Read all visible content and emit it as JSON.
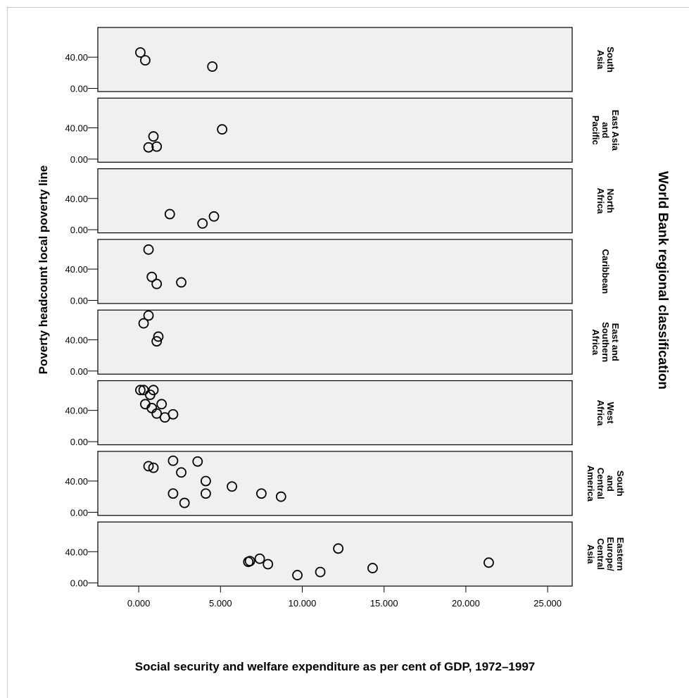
{
  "chart_data": {
    "type": "scatter",
    "xlabel": "Social security and welfare expenditure as per cent of GDP, 1972–1997",
    "ylabel": "Poverty headcount local poverty line",
    "facet_title": "World Bank regional classification",
    "xlim": [
      -2.5,
      26.5
    ],
    "ylim": [
      -4,
      78
    ],
    "x_ticks": [
      0,
      5,
      10,
      15,
      20,
      25
    ],
    "x_tick_labels": [
      "0.000",
      "5.000",
      "10.000",
      "15.000",
      "20.000",
      "25.000"
    ],
    "y_ticks": [
      0,
      40
    ],
    "y_tick_labels": [
      "0.00",
      "40.00"
    ],
    "grid": false,
    "marker": "open-circle",
    "panels": [
      {
        "label": [
          "South",
          "Asia"
        ],
        "points": [
          [
            0.1,
            46
          ],
          [
            0.4,
            36
          ],
          [
            4.5,
            28
          ]
        ]
      },
      {
        "label": [
          "East Asia",
          "and",
          "Pacific"
        ],
        "points": [
          [
            0.9,
            29
          ],
          [
            5.1,
            38
          ],
          [
            0.6,
            15
          ],
          [
            1.1,
            16
          ]
        ]
      },
      {
        "label": [
          "North",
          "Africa"
        ],
        "points": [
          [
            1.9,
            20
          ],
          [
            4.6,
            17
          ],
          [
            3.9,
            8
          ]
        ]
      },
      {
        "label": [
          "Caribbean"
        ],
        "points": [
          [
            0.6,
            65
          ],
          [
            0.8,
            30
          ],
          [
            1.1,
            21
          ],
          [
            2.6,
            23
          ]
        ]
      },
      {
        "label": [
          "East and",
          "Southern",
          "Africa"
        ],
        "points": [
          [
            0.6,
            71
          ],
          [
            0.3,
            61
          ],
          [
            1.2,
            44
          ],
          [
            1.1,
            38
          ]
        ]
      },
      {
        "label": [
          "West",
          "Africa"
        ],
        "points": [
          [
            0.1,
            66
          ],
          [
            0.3,
            66
          ],
          [
            0.9,
            66
          ],
          [
            0.7,
            60
          ],
          [
            0.4,
            48
          ],
          [
            1.4,
            48
          ],
          [
            0.8,
            43
          ],
          [
            1.1,
            36
          ],
          [
            2.1,
            35
          ],
          [
            1.6,
            31
          ]
        ]
      },
      {
        "label": [
          "South",
          "and",
          "Central",
          "America"
        ],
        "points": [
          [
            0.6,
            59
          ],
          [
            0.9,
            57
          ],
          [
            2.1,
            66
          ],
          [
            3.6,
            65
          ],
          [
            2.6,
            51
          ],
          [
            4.1,
            40
          ],
          [
            5.7,
            33
          ],
          [
            2.1,
            24
          ],
          [
            4.1,
            24
          ],
          [
            7.5,
            24
          ],
          [
            2.8,
            12
          ],
          [
            8.7,
            20
          ]
        ]
      },
      {
        "label": [
          "Eastern",
          "Europe/",
          "Central",
          "Asia"
        ],
        "points": [
          [
            6.7,
            27
          ],
          [
            6.8,
            28
          ],
          [
            7.4,
            31
          ],
          [
            7.9,
            24
          ],
          [
            12.2,
            44
          ],
          [
            9.7,
            10
          ],
          [
            11.1,
            14
          ],
          [
            14.3,
            19
          ],
          [
            21.4,
            26
          ]
        ]
      }
    ]
  }
}
